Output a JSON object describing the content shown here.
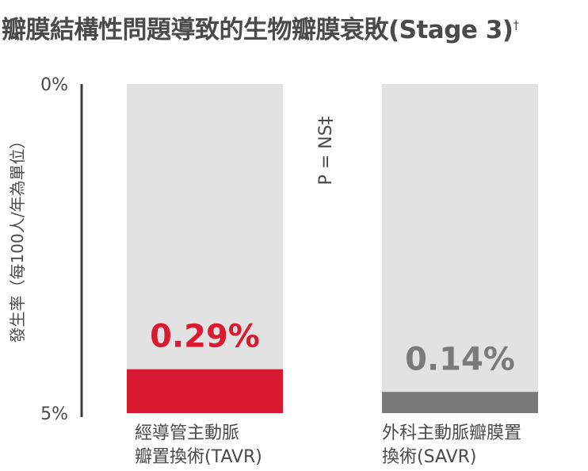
{
  "chart_data": {
    "type": "bar",
    "title": "瓣膜結構性問題導致的生物瓣膜衰敗(Stage 3)",
    "title_mark": "†",
    "ylabel": "發生率（每100人/年為單位）",
    "ylim": [
      0,
      5
    ],
    "yticks": [
      "0%",
      "5%"
    ],
    "categories": [
      "經導管主動脈瓣置換術(TAVR)",
      "外科主動脈瓣膜置換術(SAVR)"
    ],
    "category_lines": [
      [
        "經導管主動脈",
        "瓣置換術(TAVR)"
      ],
      [
        "外科主動脈瓣膜置",
        "換術(SAVR)"
      ]
    ],
    "values": [
      0.29,
      0.14
    ],
    "value_labels": [
      "0.29%",
      "0.14%"
    ],
    "bar_colors": [
      "#d91a30",
      "#7a7a7a"
    ],
    "value_label_colors": [
      "#d91a30",
      "#7a7a7a"
    ],
    "background_bar_color": "#e2e2e2",
    "annotation": "P = NS‡"
  }
}
